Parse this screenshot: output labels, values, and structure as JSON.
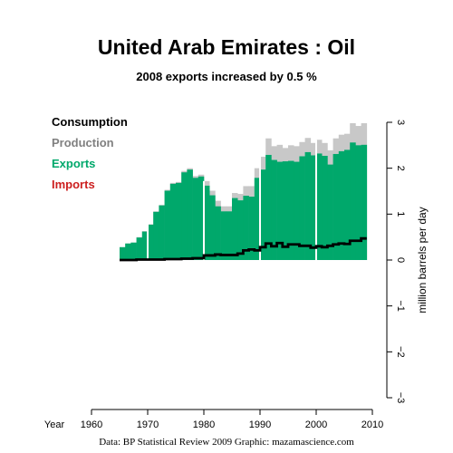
{
  "title": "United Arab Emirates :  Oil",
  "subtitle": "2008 exports increased by 0.5 %",
  "credit": "Data: BP Statistical Review 2009    Graphic: mazamascience.com",
  "colors": {
    "consumption": "#000000",
    "production": "#c8c8c8",
    "exports": "#00a86b",
    "imports": "#cc1f1f",
    "axis": "#000000"
  },
  "legend": [
    {
      "key": "consumption",
      "label": "Consumption",
      "color": "#000000"
    },
    {
      "key": "production",
      "label": "Production",
      "color": "#808080"
    },
    {
      "key": "exports",
      "label": "Exports",
      "color": "#00a86b"
    },
    {
      "key": "imports",
      "label": "Imports",
      "color": "#cc1f1f"
    }
  ],
  "chart_data": {
    "type": "area",
    "xlabel": "Year",
    "ylabel": "million barrels per day",
    "xlim": [
      1960,
      2010
    ],
    "ylim": [
      -3,
      3
    ],
    "x_ticks": [
      "1960",
      "1970",
      "1980",
      "1990",
      "2000",
      "2010"
    ],
    "y_ticks": [
      "3",
      "2",
      "1",
      "0",
      "−1",
      "−2",
      "−3"
    ],
    "legend_position": "top-left",
    "grid": false,
    "decade_markers": [
      1970,
      1980,
      1990,
      2000
    ],
    "x": [
      1965,
      1966,
      1967,
      1968,
      1969,
      1970,
      1971,
      1972,
      1973,
      1974,
      1975,
      1976,
      1977,
      1978,
      1979,
      1980,
      1981,
      1982,
      1983,
      1984,
      1985,
      1986,
      1987,
      1988,
      1989,
      1990,
      1991,
      1992,
      1993,
      1994,
      1995,
      1996,
      1997,
      1998,
      1999,
      2000,
      2001,
      2002,
      2003,
      2004,
      2005,
      2006,
      2007,
      2008
    ],
    "series": [
      {
        "name": "Production",
        "values": [
          0.28,
          0.36,
          0.38,
          0.5,
          0.63,
          0.78,
          1.06,
          1.2,
          1.53,
          1.68,
          1.7,
          1.94,
          2.0,
          1.83,
          1.86,
          1.72,
          1.51,
          1.29,
          1.17,
          1.17,
          1.46,
          1.44,
          1.61,
          1.61,
          2.0,
          2.25,
          2.65,
          2.48,
          2.51,
          2.44,
          2.5,
          2.48,
          2.57,
          2.66,
          2.55,
          2.62,
          2.55,
          2.39,
          2.65,
          2.73,
          2.75,
          2.98,
          2.92,
          2.98
        ]
      },
      {
        "name": "Exports",
        "values": [
          0.28,
          0.36,
          0.38,
          0.49,
          0.62,
          0.77,
          1.05,
          1.19,
          1.51,
          1.66,
          1.68,
          1.91,
          1.97,
          1.79,
          1.82,
          1.62,
          1.41,
          1.17,
          1.06,
          1.06,
          1.35,
          1.3,
          1.4,
          1.38,
          1.79,
          1.97,
          2.29,
          2.18,
          2.14,
          2.15,
          2.16,
          2.14,
          2.26,
          2.35,
          2.28,
          2.32,
          2.27,
          2.08,
          2.31,
          2.37,
          2.4,
          2.56,
          2.5,
          2.51
        ]
      },
      {
        "name": "Consumption",
        "values": [
          0.0,
          0.0,
          0.0,
          0.01,
          0.01,
          0.01,
          0.01,
          0.01,
          0.02,
          0.02,
          0.02,
          0.03,
          0.03,
          0.04,
          0.04,
          0.1,
          0.1,
          0.12,
          0.11,
          0.11,
          0.11,
          0.14,
          0.21,
          0.23,
          0.21,
          0.28,
          0.36,
          0.3,
          0.37,
          0.29,
          0.34,
          0.34,
          0.31,
          0.31,
          0.27,
          0.3,
          0.28,
          0.31,
          0.34,
          0.36,
          0.35,
          0.42,
          0.42,
          0.47
        ]
      }
    ]
  }
}
